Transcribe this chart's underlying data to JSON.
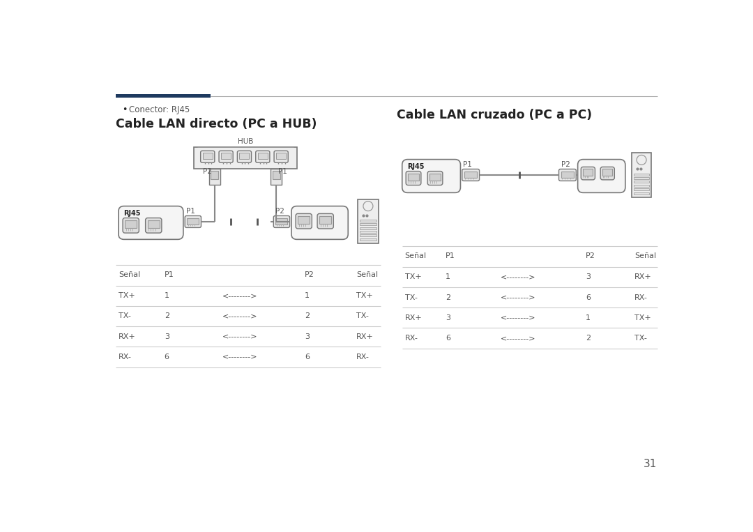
{
  "bg_color": "#ffffff",
  "page_number": "31",
  "bullet_text": "Conector: RJ45",
  "left_title": "Cable LAN directo (PC a HUB)",
  "right_title": "Cable LAN cruzado (PC a PC)",
  "header_dark_color": "#1e3a5f",
  "header_light_color": "#aaaaaa",
  "text_dark": "#222222",
  "text_mid": "#555555",
  "text_light": "#888888",
  "line_color": "#cccccc",
  "diagram_line": "#888888",
  "diagram_fill": "#f2f2f2",
  "diagram_fill2": "#e0e0e0",
  "left_table": {
    "headers": [
      "Señal",
      "P1",
      "",
      "P2",
      "Señal"
    ],
    "rows": [
      [
        "TX+",
        "1",
        "<-------->",
        "1",
        "TX+"
      ],
      [
        "TX-",
        "2",
        "<-------->",
        "2",
        "TX-"
      ],
      [
        "RX+",
        "3",
        "<-------->",
        "3",
        "RX+"
      ],
      [
        "RX-",
        "6",
        "<-------->",
        "6",
        "RX-"
      ]
    ]
  },
  "right_table": {
    "headers": [
      "Señal",
      "P1",
      "",
      "P2",
      "Señal"
    ],
    "rows": [
      [
        "TX+",
        "1",
        "<-------->",
        "3",
        "RX+"
      ],
      [
        "TX-",
        "2",
        "<-------->",
        "6",
        "RX-"
      ],
      [
        "RX+",
        "3",
        "<-------->",
        "1",
        "TX+"
      ],
      [
        "RX-",
        "6",
        "<-------->",
        "2",
        "TX-"
      ]
    ]
  }
}
